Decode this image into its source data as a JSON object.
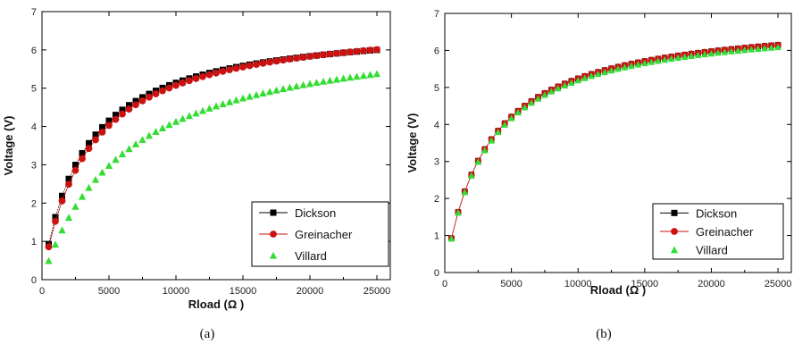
{
  "chart_data": [
    {
      "type": "line",
      "caption": "(a)",
      "xlabel": "Rload (Ω )",
      "ylabel": "Voltage (V)",
      "xlim": [
        0,
        26000
      ],
      "ylim": [
        0,
        7
      ],
      "x_ticks": [
        0,
        5000,
        10000,
        15000,
        20000,
        25000
      ],
      "y_ticks": [
        0,
        1,
        2,
        3,
        4,
        5,
        6,
        7
      ],
      "grid": false,
      "legend_position": "bottom-right",
      "series": [
        {
          "name": "Dickson",
          "color": "#000000",
          "marker": "square",
          "line": "dotted",
          "v_max": 6.75,
          "r_half": 3130
        },
        {
          "name": "Greinacher",
          "color": "#cc1111",
          "marker": "circle",
          "line": "solid",
          "v_max": 6.85,
          "r_half": 3500
        },
        {
          "name": "Villard",
          "color": "#33dd33",
          "marker": "triangle",
          "line": "none",
          "v_max": 6.73,
          "r_half": 6300
        }
      ]
    },
    {
      "type": "line",
      "caption": "(b)",
      "xlabel": "Rload (Ω )",
      "ylabel": "Voltage (V)",
      "xlim": [
        0,
        26000
      ],
      "ylim": [
        0,
        7
      ],
      "x_ticks": [
        0,
        5000,
        10000,
        15000,
        20000,
        25000
      ],
      "y_ticks": [
        0,
        1,
        2,
        3,
        4,
        5,
        6,
        7
      ],
      "grid": false,
      "legend_position": "bottom-right",
      "series": [
        {
          "name": "Dickson",
          "color": "#000000",
          "marker": "square",
          "line": "dotted",
          "v_max": 6.95,
          "r_half": 3260
        },
        {
          "name": "Greinacher",
          "color": "#cc1111",
          "marker": "circle",
          "line": "solid",
          "v_max": 6.95,
          "r_half": 3260
        },
        {
          "name": "Villard",
          "color": "#33dd33",
          "marker": "triangle",
          "line": "none",
          "v_max": 6.88,
          "r_half": 3250
        }
      ]
    }
  ],
  "sample_x": [
    500,
    1000,
    1500,
    2000,
    2500,
    3000,
    3500,
    4000,
    4500,
    5000,
    5500,
    6000,
    6500,
    7000,
    7500,
    8000,
    8500,
    9000,
    9500,
    10000,
    10500,
    11000,
    11500,
    12000,
    12500,
    13000,
    13500,
    14000,
    14500,
    15000,
    15500,
    16000,
    16500,
    17000,
    17500,
    18000,
    18500,
    19000,
    19500,
    20000,
    20500,
    21000,
    21500,
    22000,
    22500,
    23000,
    23500,
    24000,
    24500,
    25000
  ]
}
